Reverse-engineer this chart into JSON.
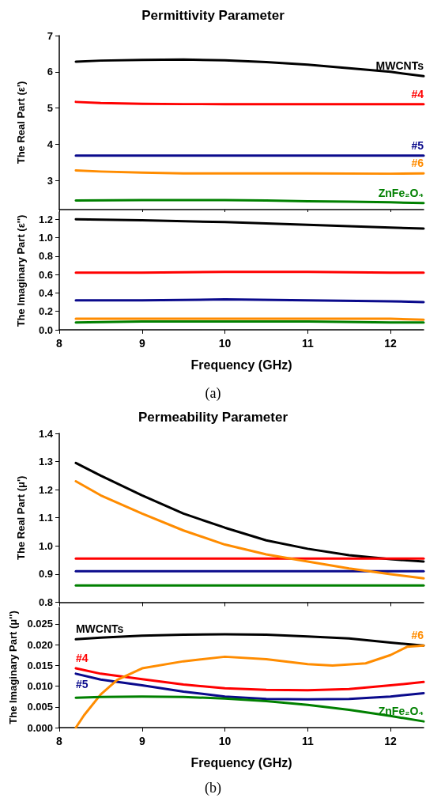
{
  "chart_data": [
    {
      "type": "line",
      "title": "Permittivity Parameter",
      "ylabel": "The Real Part (ε')",
      "xlim": [
        8,
        12.4
      ],
      "xticks": [
        8,
        9,
        10,
        11,
        12
      ],
      "ylim": [
        2.2,
        7
      ],
      "yticks": [
        3,
        4,
        5,
        6,
        7
      ],
      "tick_labels": "y",
      "series": [
        {
          "name": "MWCNTs",
          "color": "#000000",
          "x": [
            8.2,
            8.5,
            9,
            9.5,
            10,
            10.5,
            11,
            11.5,
            12,
            12.4
          ],
          "values": [
            6.28,
            6.31,
            6.33,
            6.34,
            6.32,
            6.27,
            6.2,
            6.1,
            6.0,
            5.88
          ]
        },
        {
          "name": "#4",
          "color": "#ff0000",
          "x": [
            8.2,
            8.5,
            9,
            9.5,
            10,
            11,
            12,
            12.4
          ],
          "values": [
            5.17,
            5.14,
            5.12,
            5.11,
            5.11,
            5.11,
            5.11,
            5.11
          ]
        },
        {
          "name": "#5",
          "color": "#0a0a8c",
          "x": [
            8.2,
            9,
            10,
            11,
            12,
            12.4
          ],
          "values": [
            3.69,
            3.69,
            3.69,
            3.69,
            3.69,
            3.69
          ]
        },
        {
          "name": "#6",
          "color": "#ff8c00",
          "x": [
            8.2,
            8.5,
            9,
            9.5,
            10,
            11,
            12,
            12.4
          ],
          "values": [
            3.28,
            3.25,
            3.22,
            3.2,
            3.2,
            3.2,
            3.19,
            3.2
          ]
        },
        {
          "name": "ZnFe₂O₄",
          "color": "#008000",
          "x": [
            8.2,
            9,
            10,
            10.5,
            11,
            11.5,
            12,
            12.4
          ],
          "values": [
            2.45,
            2.46,
            2.46,
            2.45,
            2.43,
            2.42,
            2.4,
            2.38
          ]
        }
      ]
    },
    {
      "type": "line",
      "ylabel": "The Imaginary Part (ε'')",
      "xlabel": "Frequency (GHz)",
      "annotations": [
        "(a)"
      ],
      "xlim": [
        8,
        12.4
      ],
      "xticks": [
        8,
        9,
        10,
        11,
        12
      ],
      "ylim": [
        0,
        1.28
      ],
      "yticks": [
        {
          "value": 0,
          "label": "0.0"
        },
        0.2,
        0.4,
        0.6,
        0.8,
        {
          "value": 1,
          "label": "1.0"
        },
        1.2
      ],
      "series": [
        {
          "color": "#000000",
          "x": [
            8.2,
            9,
            10,
            11,
            12,
            12.4
          ],
          "values": [
            1.2,
            1.19,
            1.17,
            1.14,
            1.11,
            1.1
          ]
        },
        {
          "color": "#ff0000",
          "x": [
            8.2,
            9,
            10,
            11,
            12,
            12.4
          ],
          "values": [
            0.62,
            0.62,
            0.63,
            0.63,
            0.62,
            0.62
          ]
        },
        {
          "color": "#0a0a8c",
          "x": [
            8.2,
            9,
            10,
            11,
            12,
            12.4
          ],
          "values": [
            0.32,
            0.32,
            0.33,
            0.32,
            0.31,
            0.3
          ]
        },
        {
          "color": "#ff8c00",
          "x": [
            8.2,
            9,
            10,
            11,
            12,
            12.4
          ],
          "values": [
            0.12,
            0.12,
            0.12,
            0.12,
            0.12,
            0.11
          ]
        },
        {
          "color": "#008000",
          "x": [
            8.2,
            9,
            10,
            11,
            12,
            12.4
          ],
          "values": [
            0.08,
            0.09,
            0.09,
            0.09,
            0.08,
            0.08
          ]
        }
      ]
    },
    {
      "type": "line",
      "title": "Permeability Parameter",
      "ylabel": "The Real Part (μ')",
      "xlim": [
        8,
        12.4
      ],
      "xticks": [
        8,
        9,
        10,
        11,
        12
      ],
      "ylim": [
        0.8,
        1.4
      ],
      "yticks": [
        0.8,
        0.9,
        {
          "value": 1,
          "label": "1.0"
        },
        1.1,
        1.2,
        1.3,
        1.4
      ],
      "tick_labels": "y",
      "series": [
        {
          "color": "#000000",
          "x": [
            8.2,
            8.5,
            9,
            9.5,
            10,
            10.5,
            11,
            11.5,
            12,
            12.4
          ],
          "values": [
            1.295,
            1.25,
            1.18,
            1.115,
            1.065,
            1.02,
            0.99,
            0.967,
            0.953,
            0.945
          ]
        },
        {
          "color": "#ff0000",
          "x": [
            8.2,
            9,
            10,
            11,
            12,
            12.4
          ],
          "values": [
            0.955,
            0.955,
            0.955,
            0.955,
            0.955,
            0.955
          ]
        },
        {
          "color": "#0a0a8c",
          "x": [
            8.2,
            9,
            10,
            11,
            12,
            12.4
          ],
          "values": [
            0.91,
            0.91,
            0.91,
            0.91,
            0.91,
            0.91
          ]
        },
        {
          "color": "#ff8c00",
          "x": [
            8.2,
            8.5,
            9,
            9.5,
            10,
            10.5,
            11,
            11.5,
            12,
            12.4
          ],
          "values": [
            1.23,
            1.18,
            1.115,
            1.055,
            1.005,
            0.97,
            0.945,
            0.92,
            0.9,
            0.885
          ]
        },
        {
          "color": "#008000",
          "x": [
            8.2,
            9,
            10,
            11,
            12,
            12.4
          ],
          "values": [
            0.86,
            0.86,
            0.86,
            0.86,
            0.86,
            0.86
          ]
        }
      ]
    },
    {
      "type": "line",
      "ylabel": "The Imaginary Part (μ'')",
      "xlabel": "Frequency (GHz)",
      "annotations": [
        "(b)"
      ],
      "xlim": [
        8,
        12.4
      ],
      "xticks": [
        8,
        9,
        10,
        11,
        12
      ],
      "ylim": [
        0,
        0.029
      ],
      "yticks": [
        {
          "value": 0,
          "label": "0.000"
        },
        {
          "value": 0.005,
          "label": "0.005"
        },
        {
          "value": 0.01,
          "label": "0.010"
        },
        {
          "value": 0.015,
          "label": "0.015"
        },
        {
          "value": 0.02,
          "label": "0.020"
        },
        {
          "value": 0.025,
          "label": "0.025"
        }
      ],
      "series": [
        {
          "name": "MWCNTs",
          "color": "#000000",
          "x": [
            8.2,
            8.5,
            9,
            9.5,
            10,
            10.5,
            11,
            11.5,
            12,
            12.4
          ],
          "values": [
            0.0213,
            0.0217,
            0.0222,
            0.0224,
            0.0225,
            0.0224,
            0.022,
            0.0215,
            0.0205,
            0.0198
          ]
        },
        {
          "name": "#4",
          "color": "#ff0000",
          "x": [
            8.2,
            8.5,
            9,
            9.5,
            10,
            10.5,
            11,
            11.5,
            12,
            12.4
          ],
          "values": [
            0.0143,
            0.013,
            0.0117,
            0.0104,
            0.0095,
            0.0091,
            0.009,
            0.0093,
            0.0102,
            0.011
          ]
        },
        {
          "name": "#5",
          "color": "#0a0a8c",
          "x": [
            8.2,
            8.5,
            9,
            9.5,
            10,
            10.5,
            11,
            11.5,
            12,
            12.4
          ],
          "values": [
            0.013,
            0.0116,
            0.0102,
            0.0087,
            0.0075,
            0.0069,
            0.0068,
            0.0069,
            0.0075,
            0.0083
          ]
        },
        {
          "name": "#6",
          "color": "#ff8c00",
          "x": [
            8.2,
            8.3,
            8.5,
            8.7,
            9,
            9.5,
            10,
            10.5,
            11,
            11.3,
            11.7,
            12,
            12.2,
            12.4
          ],
          "values": [
            0,
            0.003,
            0.008,
            0.0115,
            0.0143,
            0.016,
            0.0171,
            0.0165,
            0.0153,
            0.015,
            0.0155,
            0.0175,
            0.0195,
            0.0198
          ]
        },
        {
          "name": "ZnFe₂O₄",
          "color": "#008000",
          "x": [
            8.2,
            8.5,
            9,
            9.5,
            10,
            10.5,
            11,
            11.5,
            12,
            12.4
          ],
          "values": [
            0.0072,
            0.0074,
            0.0075,
            0.0074,
            0.007,
            0.0064,
            0.0055,
            0.0043,
            0.0028,
            0.0015
          ]
        }
      ]
    }
  ]
}
